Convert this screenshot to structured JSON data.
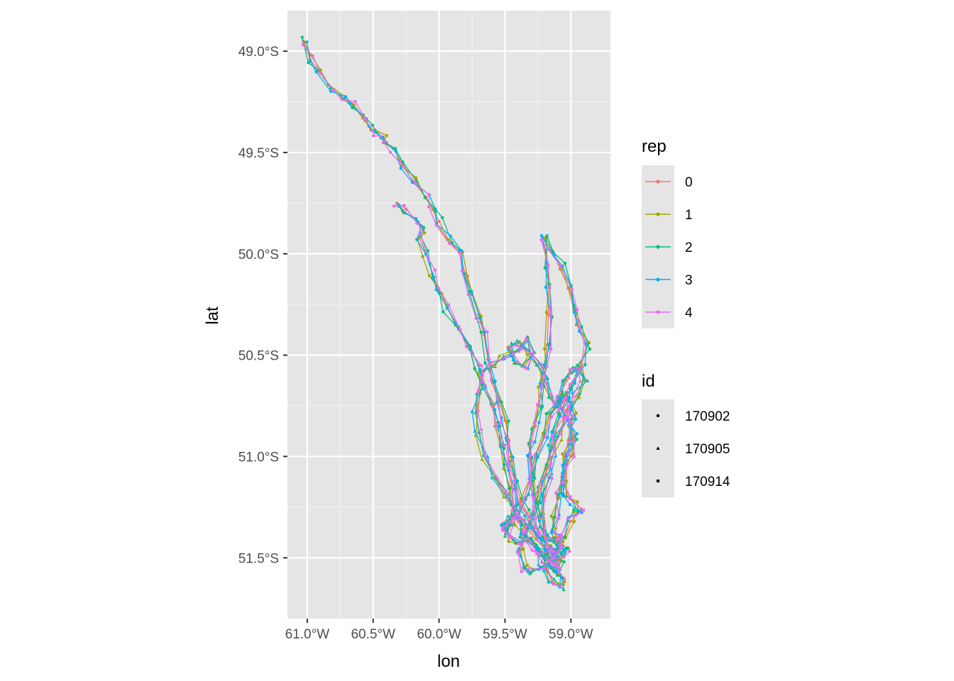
{
  "chart_data": {
    "type": "line",
    "xlabel": "lon",
    "ylabel": "lat",
    "xlim": [
      -61.15,
      -58.7
    ],
    "ylim": [
      -51.8,
      -48.8
    ],
    "x_ticks": [
      {
        "value": -61.0,
        "label": "61.0°W"
      },
      {
        "value": -60.5,
        "label": "60.5°W"
      },
      {
        "value": -60.0,
        "label": "60.0°W"
      },
      {
        "value": -59.5,
        "label": "59.5°W"
      },
      {
        "value": -59.0,
        "label": "59.0°W"
      }
    ],
    "y_ticks": [
      {
        "value": -49.0,
        "label": "49.0°S"
      },
      {
        "value": -49.5,
        "label": "49.5°S"
      },
      {
        "value": -50.0,
        "label": "50.0°S"
      },
      {
        "value": -50.5,
        "label": "50.5°S"
      },
      {
        "value": -51.0,
        "label": "51.0°S"
      },
      {
        "value": -51.5,
        "label": "51.5°S"
      }
    ],
    "grid": true,
    "background": "#e5e5e5",
    "legend_placement": "right",
    "legends": [
      {
        "title": "rep",
        "entries": [
          {
            "label": "0",
            "color": "#F8766D"
          },
          {
            "label": "1",
            "color": "#A3A500"
          },
          {
            "label": "2",
            "color": "#00BF7D"
          },
          {
            "label": "3",
            "color": "#00B0F6"
          },
          {
            "label": "4",
            "color": "#E76BF3"
          }
        ]
      },
      {
        "title": "id",
        "entries": [
          {
            "label": "170902",
            "shape": "circle"
          },
          {
            "label": "170905",
            "shape": "triangle"
          },
          {
            "label": "170914",
            "shape": "square"
          }
        ]
      }
    ],
    "base_tracks": [
      {
        "id": "170902",
        "shape": "circle",
        "points": [
          [
            -61.03,
            -48.95
          ],
          [
            -60.98,
            -49.04
          ],
          [
            -60.91,
            -49.1
          ],
          [
            -60.82,
            -49.18
          ],
          [
            -60.72,
            -49.24
          ],
          [
            -60.66,
            -49.26
          ],
          [
            -60.58,
            -49.33
          ],
          [
            -60.52,
            -49.38
          ],
          [
            -60.47,
            -49.4
          ],
          [
            -60.42,
            -49.43
          ],
          [
            -60.4,
            -49.45
          ],
          [
            -60.35,
            -49.48
          ],
          [
            -60.27,
            -49.56
          ],
          [
            -60.2,
            -49.64
          ],
          [
            -60.1,
            -49.72
          ],
          [
            -60.05,
            -49.78
          ],
          [
            -60.0,
            -49.84
          ],
          [
            -59.93,
            -49.93
          ],
          [
            -59.85,
            -49.99
          ],
          [
            -59.8,
            -50.1
          ],
          [
            -59.75,
            -50.2
          ],
          [
            -59.7,
            -50.3
          ],
          [
            -59.66,
            -50.4
          ],
          [
            -59.63,
            -50.52
          ],
          [
            -59.6,
            -50.62
          ],
          [
            -59.55,
            -50.72
          ],
          [
            -59.5,
            -50.82
          ],
          [
            -59.47,
            -50.92
          ],
          [
            -59.45,
            -51.02
          ],
          [
            -59.42,
            -51.12
          ],
          [
            -59.38,
            -51.22
          ],
          [
            -59.33,
            -51.28
          ],
          [
            -59.27,
            -51.35
          ],
          [
            -59.22,
            -51.4
          ],
          [
            -59.17,
            -51.44
          ],
          [
            -59.12,
            -51.48
          ],
          [
            -59.08,
            -51.52
          ],
          [
            -59.1,
            -51.57
          ],
          [
            -59.15,
            -51.55
          ],
          [
            -59.12,
            -51.47
          ],
          [
            -59.06,
            -51.44
          ],
          [
            -59.1,
            -51.4
          ],
          [
            -59.14,
            -51.36
          ],
          [
            -59.12,
            -51.3
          ],
          [
            -59.1,
            -51.2
          ],
          [
            -59.07,
            -51.1
          ],
          [
            -59.05,
            -51.0
          ],
          [
            -59.02,
            -50.92
          ],
          [
            -59.0,
            -50.85
          ],
          [
            -58.97,
            -50.8
          ],
          [
            -59.0,
            -50.75
          ],
          [
            -59.04,
            -50.7
          ],
          [
            -59.1,
            -50.75
          ],
          [
            -59.16,
            -50.8
          ],
          [
            -59.2,
            -50.9
          ],
          [
            -59.25,
            -51.0
          ],
          [
            -59.3,
            -51.1
          ],
          [
            -59.35,
            -51.2
          ],
          [
            -59.4,
            -51.28
          ],
          [
            -59.45,
            -51.32
          ],
          [
            -59.5,
            -51.35
          ],
          [
            -59.46,
            -51.4
          ],
          [
            -59.4,
            -51.43
          ],
          [
            -59.33,
            -51.42
          ],
          [
            -59.27,
            -51.45
          ],
          [
            -59.2,
            -51.5
          ],
          [
            -59.13,
            -51.52
          ],
          [
            -59.07,
            -51.48
          ],
          [
            -59.03,
            -51.45
          ]
        ]
      },
      {
        "id": "170905",
        "shape": "triangle",
        "points": [
          [
            -59.12,
            -51.5
          ],
          [
            -59.18,
            -51.46
          ],
          [
            -59.25,
            -51.4
          ],
          [
            -59.32,
            -51.35
          ],
          [
            -59.38,
            -51.32
          ],
          [
            -59.45,
            -51.3
          ],
          [
            -59.52,
            -51.33
          ],
          [
            -59.48,
            -51.38
          ],
          [
            -59.42,
            -51.26
          ],
          [
            -59.5,
            -51.18
          ],
          [
            -59.58,
            -51.1
          ],
          [
            -59.65,
            -51.0
          ],
          [
            -59.7,
            -50.88
          ],
          [
            -59.72,
            -50.78
          ],
          [
            -59.7,
            -50.68
          ],
          [
            -59.68,
            -50.58
          ],
          [
            -59.6,
            -50.55
          ],
          [
            -59.52,
            -50.52
          ],
          [
            -59.45,
            -50.5
          ],
          [
            -59.38,
            -50.47
          ],
          [
            -59.33,
            -50.43
          ],
          [
            -59.3,
            -50.5
          ],
          [
            -59.35,
            -50.56
          ],
          [
            -59.42,
            -50.54
          ],
          [
            -59.48,
            -50.46
          ],
          [
            -59.4,
            -50.44
          ],
          [
            -59.32,
            -50.48
          ],
          [
            -59.25,
            -50.55
          ],
          [
            -59.2,
            -50.62
          ],
          [
            -59.16,
            -50.7
          ],
          [
            -59.12,
            -50.76
          ],
          [
            -59.08,
            -50.7
          ],
          [
            -59.04,
            -50.62
          ],
          [
            -59.0,
            -50.58
          ],
          [
            -58.95,
            -50.55
          ],
          [
            -58.9,
            -50.62
          ],
          [
            -58.96,
            -50.7
          ],
          [
            -59.0,
            -50.76
          ],
          [
            -59.05,
            -50.82
          ],
          [
            -59.1,
            -50.9
          ],
          [
            -59.14,
            -51.0
          ],
          [
            -59.17,
            -51.1
          ],
          [
            -59.2,
            -51.2
          ],
          [
            -59.22,
            -51.3
          ],
          [
            -59.2,
            -51.4
          ],
          [
            -59.18,
            -51.48
          ],
          [
            -59.15,
            -51.54
          ],
          [
            -59.1,
            -51.58
          ],
          [
            -59.05,
            -51.6
          ],
          [
            -59.08,
            -51.64
          ],
          [
            -59.14,
            -51.62
          ],
          [
            -59.18,
            -51.56
          ],
          [
            -59.22,
            -51.52
          ],
          [
            -59.26,
            -51.48
          ]
        ]
      },
      {
        "id": "170914",
        "shape": "square",
        "points": [
          [
            -59.07,
            -51.45
          ],
          [
            -59.12,
            -51.42
          ],
          [
            -59.18,
            -51.4
          ],
          [
            -59.22,
            -51.36
          ],
          [
            -59.25,
            -51.3
          ],
          [
            -59.28,
            -51.2
          ],
          [
            -59.3,
            -51.1
          ],
          [
            -59.32,
            -51.0
          ],
          [
            -59.3,
            -50.92
          ],
          [
            -59.27,
            -50.85
          ],
          [
            -59.24,
            -50.75
          ],
          [
            -59.22,
            -50.65
          ],
          [
            -59.2,
            -50.55
          ],
          [
            -59.18,
            -50.45
          ],
          [
            -59.17,
            -50.3
          ],
          [
            -59.17,
            -50.15
          ],
          [
            -59.18,
            -50.05
          ],
          [
            -59.21,
            -49.92
          ],
          [
            -59.15,
            -49.99
          ],
          [
            -59.07,
            -50.06
          ],
          [
            -59.02,
            -50.17
          ],
          [
            -58.98,
            -50.27
          ],
          [
            -58.93,
            -50.37
          ],
          [
            -58.88,
            -50.45
          ],
          [
            -58.92,
            -50.55
          ],
          [
            -58.97,
            -50.62
          ],
          [
            -59.0,
            -50.66
          ],
          [
            -59.04,
            -50.72
          ],
          [
            -59.08,
            -50.8
          ],
          [
            -59.12,
            -50.88
          ],
          [
            -59.15,
            -50.96
          ],
          [
            -59.18,
            -51.05
          ],
          [
            -59.22,
            -51.14
          ],
          [
            -59.26,
            -51.22
          ],
          [
            -59.3,
            -51.3
          ],
          [
            -59.35,
            -51.38
          ],
          [
            -59.38,
            -51.46
          ],
          [
            -59.36,
            -51.55
          ],
          [
            -59.3,
            -51.57
          ],
          [
            -59.22,
            -51.55
          ],
          [
            -59.15,
            -51.5
          ],
          [
            -59.1,
            -51.44
          ],
          [
            -59.05,
            -51.4
          ],
          [
            -59.0,
            -51.32
          ],
          [
            -58.95,
            -51.28
          ],
          [
            -58.92,
            -51.26
          ],
          [
            -58.98,
            -51.22
          ],
          [
            -59.03,
            -51.18
          ],
          [
            -59.06,
            -51.12
          ],
          [
            -59.04,
            -51.05
          ],
          [
            -59.0,
            -51.0
          ],
          [
            -58.98,
            -50.9
          ],
          [
            -59.02,
            -50.82
          ],
          [
            -59.06,
            -50.76
          ],
          [
            -59.1,
            -50.72
          ]
        ]
      },
      {
        "id": "170902",
        "shape": "circle",
        "points": [
          [
            -60.32,
            -49.75
          ],
          [
            -60.25,
            -49.78
          ],
          [
            -60.18,
            -49.83
          ],
          [
            -60.12,
            -49.88
          ],
          [
            -60.15,
            -49.92
          ],
          [
            -60.1,
            -50.0
          ],
          [
            -60.05,
            -50.1
          ],
          [
            -60.0,
            -50.18
          ],
          [
            -59.94,
            -50.27
          ],
          [
            -59.85,
            -50.36
          ],
          [
            -59.78,
            -50.45
          ],
          [
            -59.7,
            -50.55
          ],
          [
            -59.65,
            -50.65
          ],
          [
            -59.6,
            -50.75
          ],
          [
            -59.56,
            -50.85
          ],
          [
            -59.52,
            -50.95
          ],
          [
            -59.48,
            -51.05
          ],
          [
            -59.45,
            -51.15
          ],
          [
            -59.43,
            -51.25
          ],
          [
            -59.4,
            -51.32
          ],
          [
            -59.36,
            -51.38
          ],
          [
            -59.3,
            -51.42
          ],
          [
            -59.24,
            -51.46
          ],
          [
            -59.18,
            -51.48
          ],
          [
            -59.12,
            -51.46
          ]
        ]
      }
    ]
  }
}
